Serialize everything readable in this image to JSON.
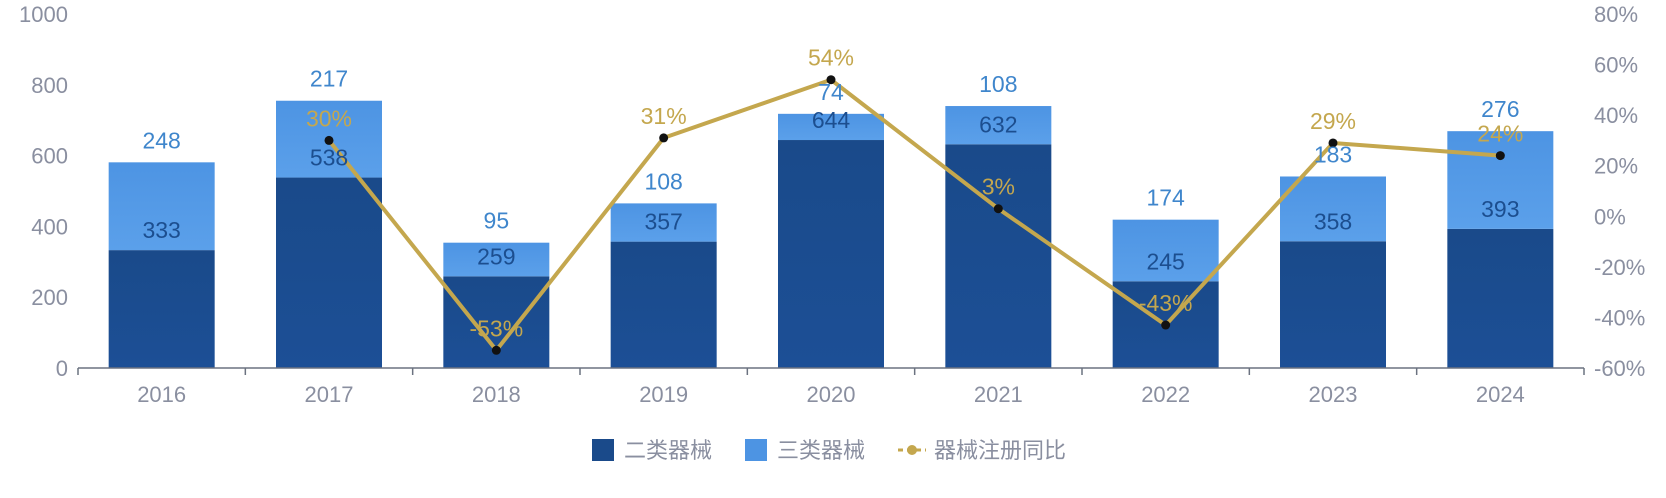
{
  "chart_data": {
    "type": "bar",
    "stacked": true,
    "categories": [
      "2016",
      "2017",
      "2018",
      "2019",
      "2020",
      "2021",
      "2022",
      "2023",
      "2024"
    ],
    "series": [
      {
        "name": "二类器械",
        "type": "bar",
        "color": "#1a4a8a",
        "values": [
          333,
          538,
          259,
          357,
          644,
          632,
          245,
          358,
          393
        ]
      },
      {
        "name": "三类器械",
        "type": "bar",
        "color": "#4d94e3",
        "values": [
          248,
          217,
          95,
          108,
          74,
          108,
          174,
          183,
          276
        ]
      },
      {
        "name": "器械注册同比",
        "type": "line",
        "axis": "right",
        "color": "#c4a74e",
        "values": [
          null,
          30,
          -53,
          31,
          54,
          3,
          -43,
          29,
          24
        ],
        "labels": [
          "",
          "30%",
          "-53%",
          "31%",
          "54%",
          "3%",
          "-43%",
          "29%",
          "24%"
        ]
      }
    ],
    "y_left": {
      "min": 0,
      "max": 1000,
      "ticks": [
        "0",
        "200",
        "400",
        "600",
        "800",
        "1000"
      ]
    },
    "y_right": {
      "min": -60,
      "max": 80,
      "unit": "%",
      "ticks": [
        "-60%",
        "-40%",
        "-20%",
        "0%",
        "20%",
        "40%",
        "60%",
        "80%"
      ]
    },
    "grid": false,
    "legend_position": "bottom"
  }
}
